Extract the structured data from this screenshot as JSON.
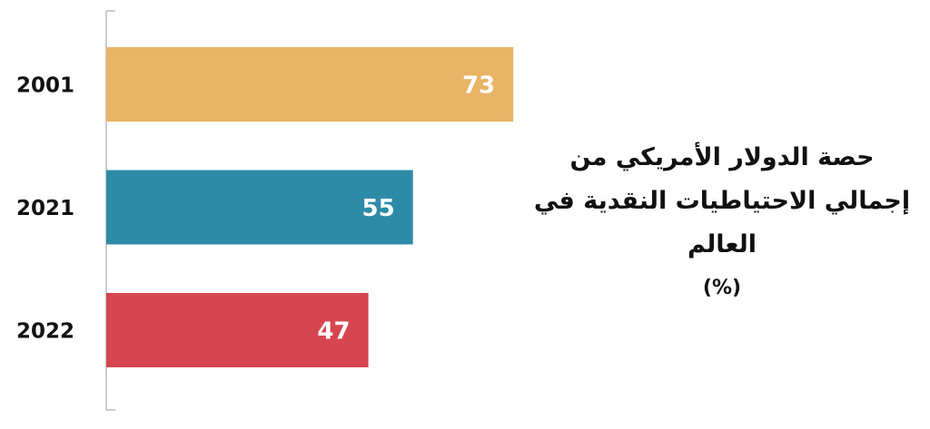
{
  "chart_data": {
    "type": "hbar",
    "title": "حصة الدولار الأمريكي من إجمالي الاحتياطيات النقدية في العالم",
    "subtitle": "(%)",
    "categories": [
      "2001",
      "2021",
      "2022"
    ],
    "values": [
      73,
      55,
      47
    ],
    "colors": [
      "#e8b466",
      "#2e8ba8",
      "#d64550"
    ]
  }
}
